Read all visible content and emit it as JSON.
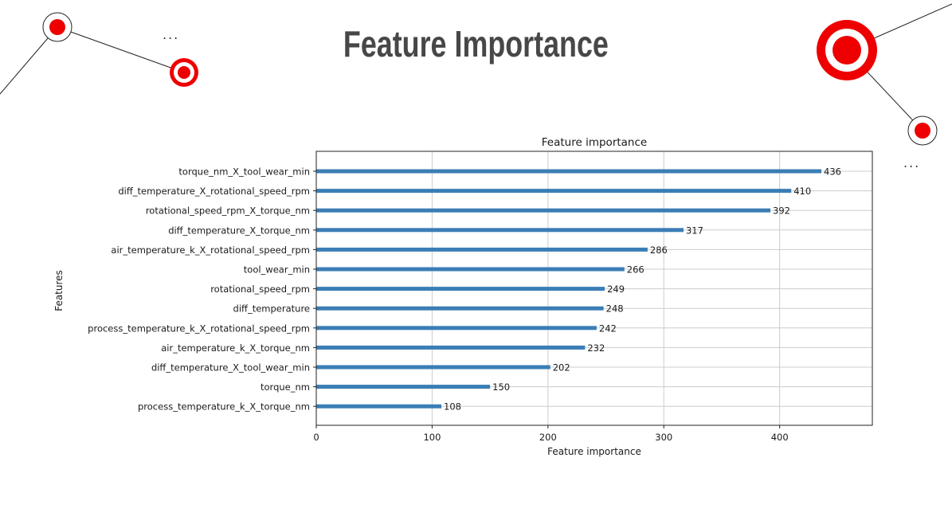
{
  "slide": {
    "title": "Feature Importance",
    "ellipsis_left": "...",
    "ellipsis_right": "..."
  },
  "colors": {
    "bar": "#3a7eb5",
    "accent": "#ee0000"
  },
  "chart_data": {
    "type": "bar",
    "orientation": "horizontal",
    "title": "Feature importance",
    "xlabel": "Feature importance",
    "ylabel": "Features",
    "xlim": [
      0,
      480
    ],
    "xticks": [
      0,
      100,
      200,
      300,
      400
    ],
    "grid": true,
    "categories": [
      "torque_nm_X_tool_wear_min",
      "diff_temperature_X_rotational_speed_rpm",
      "rotational_speed_rpm_X_torque_nm",
      "diff_temperature_X_torque_nm",
      "air_temperature_k_X_rotational_speed_rpm",
      "tool_wear_min",
      "rotational_speed_rpm",
      "diff_temperature",
      "process_temperature_k_X_rotational_speed_rpm",
      "air_temperature_k_X_torque_nm",
      "diff_temperature_X_tool_wear_min",
      "torque_nm",
      "process_temperature_k_X_torque_nm"
    ],
    "values": [
      436,
      410,
      392,
      317,
      286,
      266,
      249,
      248,
      242,
      232,
      202,
      150,
      108
    ]
  }
}
